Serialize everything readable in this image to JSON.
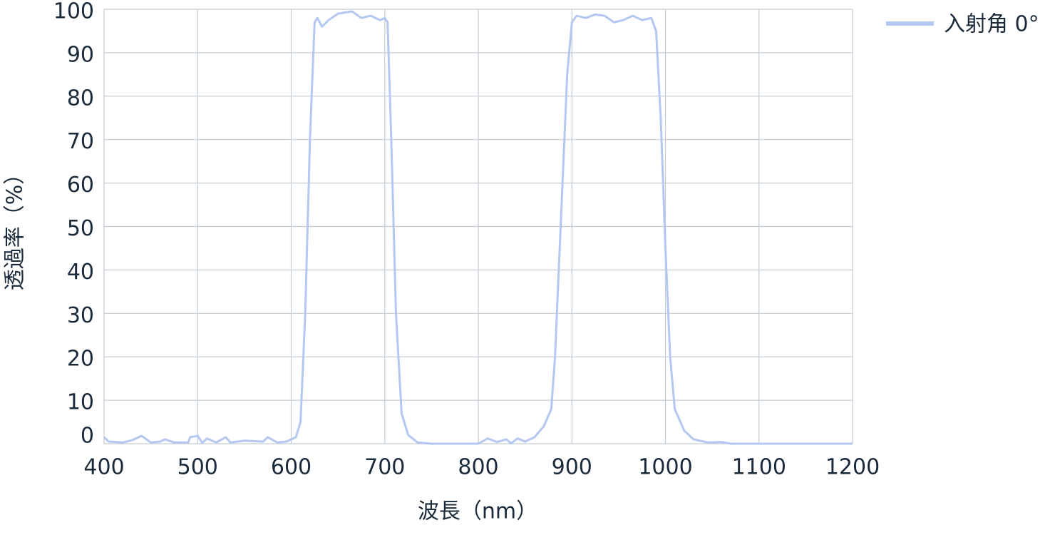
{
  "chart_data": {
    "type": "line",
    "x_label": "波長（nm）",
    "y_label": "透過率（%）",
    "x": [
      400,
      405,
      420,
      430,
      440,
      450,
      460,
      465,
      475,
      490,
      492,
      500,
      505,
      510,
      520,
      530,
      535,
      550,
      570,
      575,
      585,
      595,
      605,
      610,
      615,
      620,
      625,
      628,
      633,
      640,
      650,
      665,
      675,
      685,
      695,
      700,
      703,
      707,
      712,
      718,
      725,
      735,
      750,
      790,
      800,
      810,
      820,
      830,
      835,
      842,
      850,
      860,
      870,
      878,
      882,
      888,
      895,
      900,
      905,
      915,
      925,
      935,
      945,
      955,
      965,
      975,
      985,
      990,
      995,
      1000,
      1005,
      1010,
      1020,
      1030,
      1045,
      1060,
      1070,
      1200
    ],
    "series": [
      {
        "name": "入射角 0°",
        "color": "#b3c7f0",
        "values": [
          1.5,
          0.5,
          0.3,
          0.8,
          1.8,
          0.3,
          0.5,
          1.0,
          0.3,
          0.3,
          1.5,
          1.8,
          0.2,
          1.2,
          0.3,
          1.5,
          0.3,
          0.7,
          0.5,
          1.5,
          0.3,
          0.5,
          1.5,
          5,
          30,
          70,
          97,
          98,
          96,
          97.5,
          99,
          99.5,
          98,
          98.5,
          97.5,
          98,
          97,
          70,
          30,
          7,
          2,
          0.3,
          0,
          0,
          0,
          1.2,
          0.4,
          1.0,
          0.1,
          1.2,
          0.5,
          1.5,
          4,
          8,
          20,
          50,
          85,
          97,
          98.5,
          98,
          98.8,
          98.5,
          97,
          97.5,
          98.5,
          97.5,
          98,
          95,
          75,
          45,
          20,
          8,
          3,
          1,
          0.3,
          0.4,
          0,
          0
        ]
      }
    ],
    "xlim": [
      400,
      1200
    ],
    "xticks": [
      400,
      500,
      600,
      700,
      800,
      900,
      1000,
      1100,
      1200
    ],
    "ylim": [
      0,
      100
    ],
    "yticks": [
      0,
      10,
      20,
      30,
      40,
      50,
      60,
      70,
      80,
      90,
      100
    ],
    "grid": true,
    "legend": "top-right"
  }
}
